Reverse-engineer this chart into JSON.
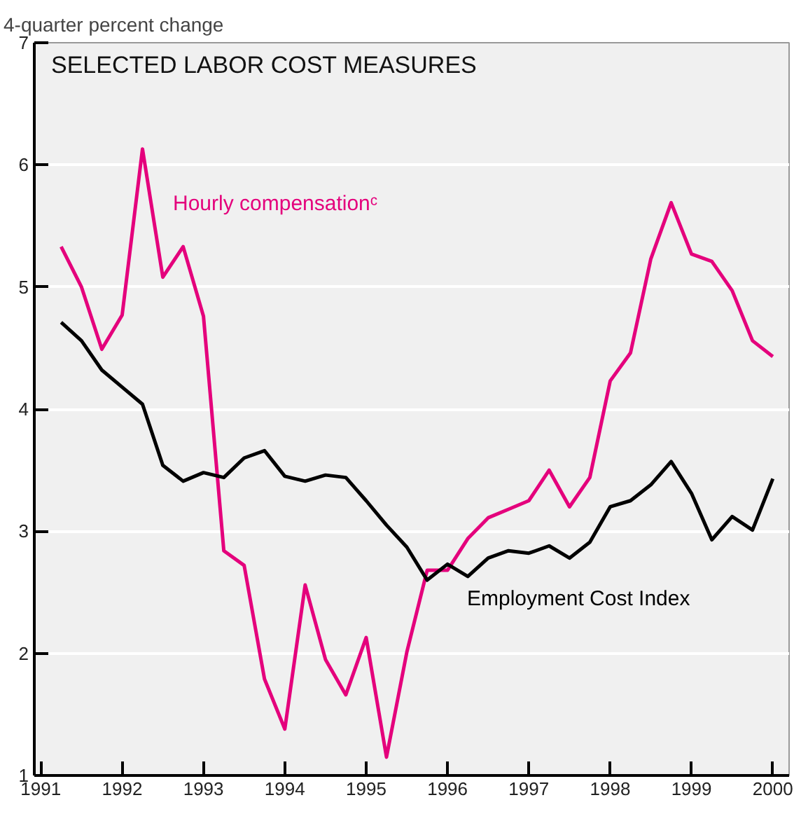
{
  "chart_data": {
    "type": "line",
    "title": "SELECTED LABOR COST MEASURES",
    "ylabel": "4-quarter percent change",
    "x": [
      1991.25,
      1991.5,
      1991.75,
      1992,
      1992.25,
      1992.5,
      1992.75,
      1993,
      1993.25,
      1993.5,
      1993.75,
      1994,
      1994.25,
      1994.5,
      1994.75,
      1995,
      1995.25,
      1995.5,
      1995.75,
      1996,
      1996.25,
      1996.5,
      1996.75,
      1997,
      1997.25,
      1997.5,
      1997.75,
      1998,
      1998.25,
      1998.5,
      1998.75,
      1999,
      1999.25,
      1999.5,
      1999.75,
      2000
    ],
    "series": [
      {
        "name": "Hourly compensationᶜ",
        "color": "#e4007c",
        "values": [
          5.33,
          5.0,
          4.49,
          4.77,
          6.13,
          5.08,
          5.33,
          4.76,
          2.84,
          2.72,
          1.79,
          1.38,
          2.56,
          1.95,
          1.66,
          2.13,
          1.15,
          2.01,
          2.68,
          2.68,
          2.94,
          3.11,
          3.18,
          3.25,
          3.5,
          3.2,
          3.44,
          4.23,
          4.46,
          5.23,
          5.69,
          5.27,
          5.21,
          4.97,
          4.56,
          4.43
        ]
      },
      {
        "name": "Employment Cost Index",
        "color": "#000000",
        "values": [
          4.71,
          4.56,
          4.32,
          4.18,
          4.04,
          3.54,
          3.41,
          3.48,
          3.44,
          3.6,
          3.66,
          3.45,
          3.41,
          3.46,
          3.44,
          3.25,
          3.05,
          2.87,
          2.6,
          2.73,
          2.63,
          2.78,
          2.84,
          2.82,
          2.88,
          2.78,
          2.91,
          3.2,
          3.25,
          3.38,
          3.57,
          3.31,
          2.93,
          3.12,
          3.01,
          3.43
        ]
      }
    ],
    "xlim": [
      1990.92,
      2000.2
    ],
    "xticks": [
      1991,
      1992,
      1993,
      1994,
      1995,
      1996,
      1997,
      1998,
      1999,
      2000
    ],
    "ylim": [
      1,
      7
    ],
    "yticks": [
      1,
      2,
      3,
      4,
      5,
      6,
      7
    ],
    "grid": "y",
    "line_style": "solid",
    "marker": "none"
  }
}
